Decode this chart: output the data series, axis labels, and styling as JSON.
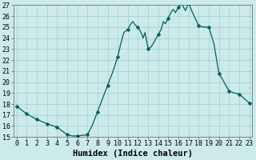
{
  "x": [
    0,
    0.5,
    1,
    1.5,
    2,
    2.5,
    3,
    3.5,
    4,
    4.5,
    5,
    5.5,
    6,
    6.5,
    7,
    7.5,
    8,
    8.5,
    9,
    9.5,
    10,
    10.3,
    10.6,
    11,
    11.3,
    11.5,
    11.7,
    12,
    12.3,
    12.5,
    12.7,
    13,
    13.3,
    13.5,
    14,
    14.3,
    14.5,
    14.7,
    15,
    15.3,
    15.5,
    15.7,
    16,
    16.3,
    16.5,
    16.7,
    17,
    17.3,
    18,
    18.5,
    19,
    19.5,
    20,
    20.5,
    21,
    21.5,
    22,
    22.5,
    23
  ],
  "y": [
    17.8,
    17.45,
    17.1,
    16.85,
    16.6,
    16.4,
    16.2,
    16.05,
    15.9,
    15.55,
    15.2,
    15.1,
    15.1,
    15.15,
    15.2,
    16.1,
    17.3,
    18.5,
    19.7,
    20.9,
    22.3,
    23.5,
    24.5,
    24.8,
    25.3,
    25.5,
    25.2,
    25.0,
    24.5,
    24.0,
    24.5,
    23.0,
    23.2,
    23.5,
    24.3,
    24.8,
    25.5,
    25.3,
    25.8,
    26.4,
    26.6,
    26.3,
    26.8,
    27.2,
    26.8,
    26.5,
    27.2,
    26.5,
    25.1,
    25.0,
    25.0,
    23.5,
    20.8,
    20.0,
    19.2,
    19.0,
    18.9,
    18.5,
    18.1
  ],
  "markers_x": [
    0,
    1,
    2,
    3,
    4,
    5,
    6,
    7,
    8,
    9,
    10,
    11,
    12,
    13,
    14,
    15,
    16,
    17,
    18,
    19,
    20,
    21,
    22,
    23
  ],
  "markers_y": [
    17.8,
    17.1,
    16.6,
    16.2,
    15.9,
    15.2,
    15.1,
    15.2,
    17.3,
    19.7,
    22.3,
    24.8,
    25.0,
    23.0,
    24.3,
    25.8,
    26.8,
    27.2,
    25.1,
    25.0,
    20.8,
    19.2,
    18.9,
    18.1
  ],
  "xlabel": "Humidex (Indice chaleur)",
  "line_color": "#005f5f",
  "marker": "D",
  "marker_size": 2.5,
  "bg_color": "#cdeaea",
  "grid_color": "#9ecece",
  "ylim": [
    15,
    27
  ],
  "xlim": [
    -0.3,
    23.3
  ],
  "yticks": [
    15,
    16,
    17,
    18,
    19,
    20,
    21,
    22,
    23,
    24,
    25,
    26,
    27
  ],
  "xticks": [
    0,
    1,
    2,
    3,
    4,
    5,
    6,
    7,
    8,
    9,
    10,
    11,
    12,
    13,
    14,
    15,
    16,
    17,
    18,
    19,
    20,
    21,
    22,
    23
  ],
  "tick_fontsize": 6,
  "label_fontsize": 7.5
}
